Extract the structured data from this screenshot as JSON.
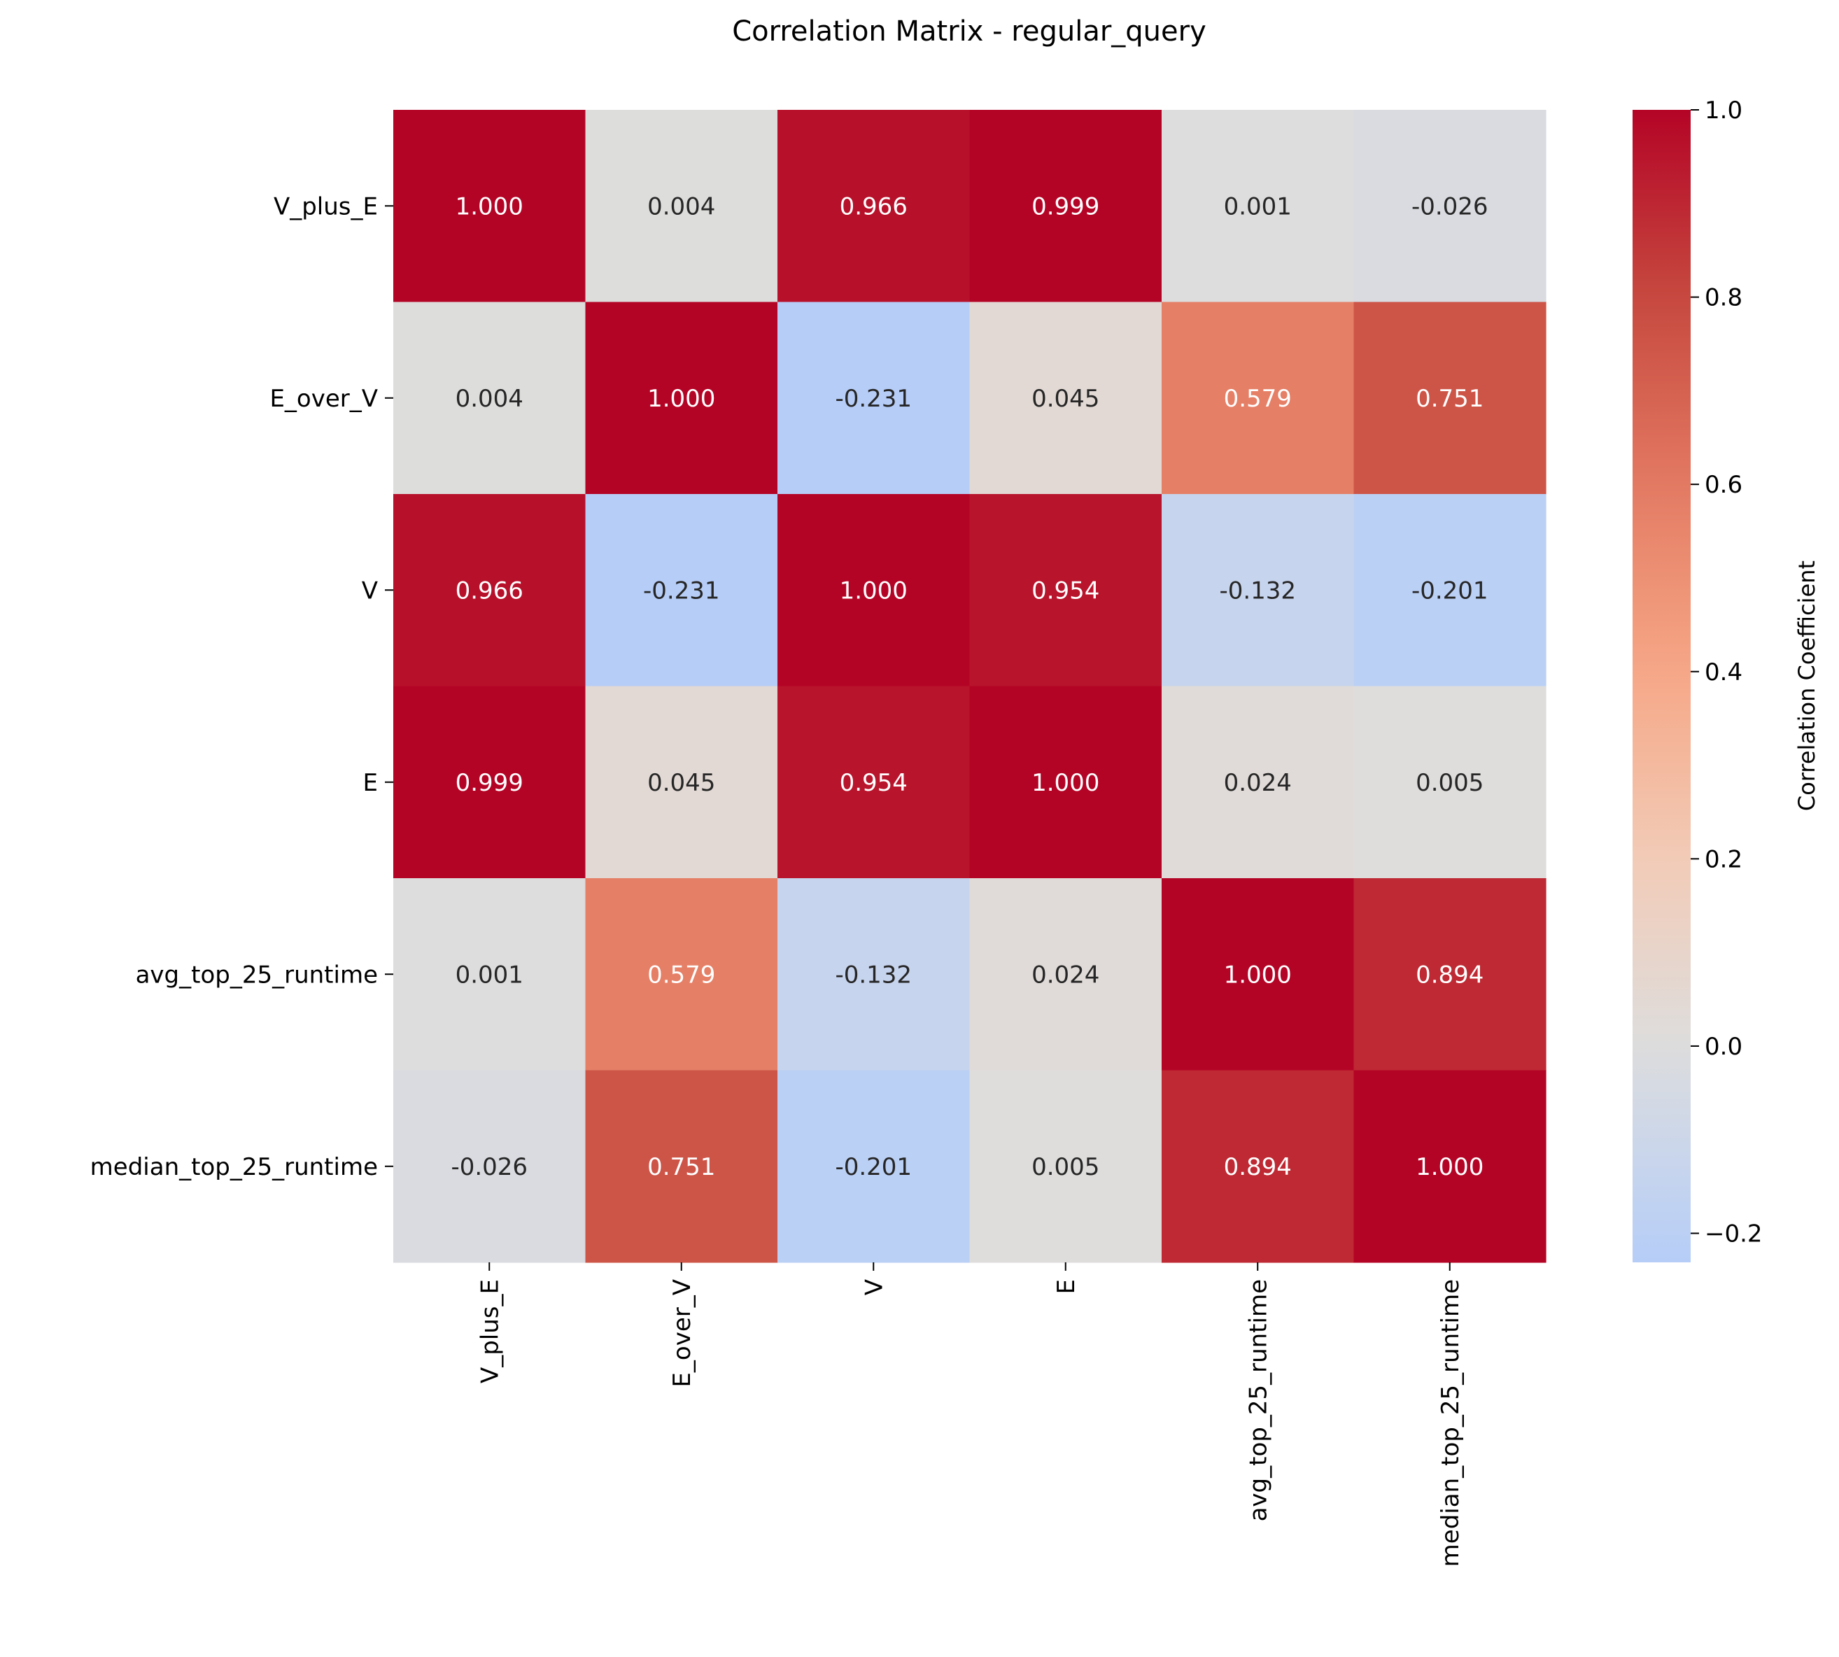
{
  "chart_data": {
    "type": "heatmap",
    "title": "Correlation Matrix - regular_query",
    "xlabel": "",
    "ylabel": "",
    "rows": [
      "V_plus_E",
      "E_over_V",
      "V",
      "E",
      "avg_top_25_runtime",
      "median_top_25_runtime"
    ],
    "columns": [
      "V_plus_E",
      "E_over_V",
      "V",
      "E",
      "avg_top_25_runtime",
      "median_top_25_runtime"
    ],
    "values": [
      [
        1.0,
        0.004,
        0.966,
        0.999,
        0.001,
        -0.026
      ],
      [
        0.004,
        1.0,
        -0.231,
        0.045,
        0.579,
        0.751
      ],
      [
        0.966,
        -0.231,
        1.0,
        0.954,
        -0.132,
        -0.201
      ],
      [
        0.999,
        0.045,
        0.954,
        1.0,
        0.024,
        0.005
      ],
      [
        0.001,
        0.579,
        -0.132,
        0.024,
        1.0,
        0.894
      ],
      [
        -0.026,
        0.751,
        -0.201,
        0.005,
        0.894,
        1.0
      ]
    ],
    "value_format": "3 decimals",
    "colormap": "coolwarm",
    "center": 0.0,
    "vmin": -0.231,
    "vmax": 1.0,
    "colorbar": {
      "label": "Correlation Coefficient",
      "ticks": [
        -0.2,
        0.0,
        0.2,
        0.4,
        0.6,
        0.8,
        1.0
      ],
      "tick_labels": [
        "−0.2",
        "0.0",
        "0.2",
        "0.4",
        "0.6",
        "0.8",
        "1.0"
      ],
      "position": "right"
    },
    "grid": false,
    "legend": "none"
  }
}
